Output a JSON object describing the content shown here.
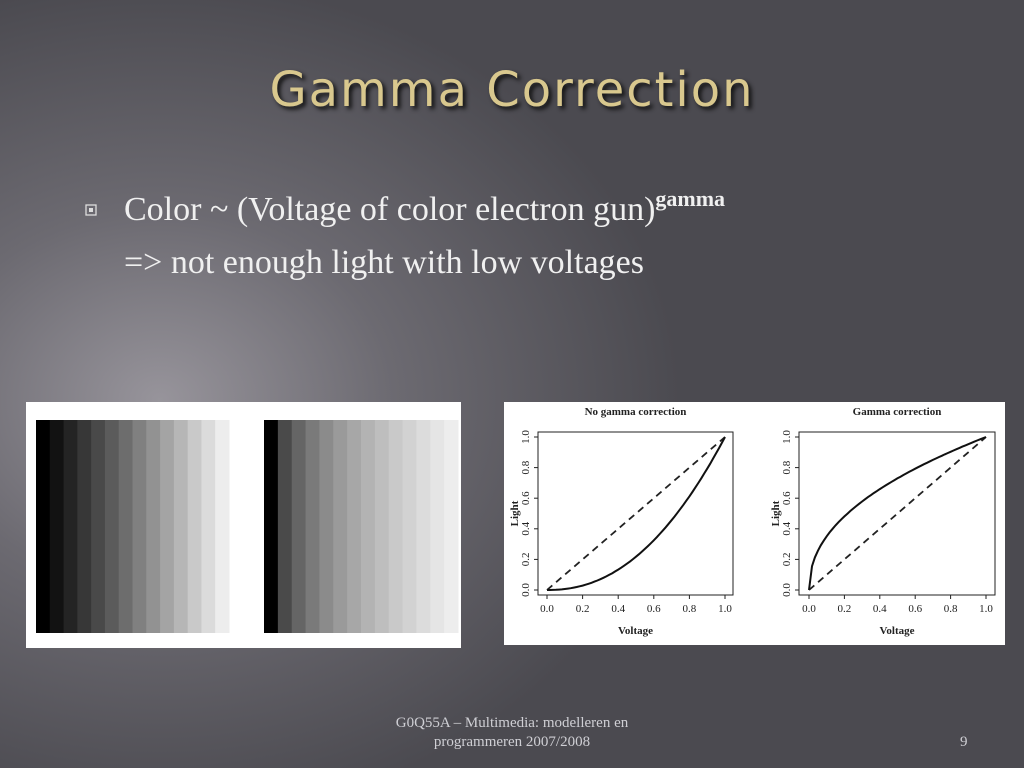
{
  "title": "Gamma Correction",
  "bullets": [
    {
      "text": "Color ~ (Voltage of color electron gun)",
      "superscript": "gamma"
    },
    {
      "text": "=> not enough light with low voltages"
    }
  ],
  "plots": [
    {
      "title": "No gamma correction",
      "xlabel": "Voltage",
      "ylabel": "Light",
      "xticks": [
        "0.0",
        "0.2",
        "0.4",
        "0.6",
        "0.8",
        "1.0"
      ],
      "yticks": [
        "0.0",
        "0.2",
        "0.4",
        "0.6",
        "0.8",
        "1.0"
      ]
    },
    {
      "title": "Gamma correction",
      "xlabel": "Voltage",
      "ylabel": "Light",
      "xticks": [
        "0.0",
        "0.2",
        "0.4",
        "0.6",
        "0.8",
        "1.0"
      ],
      "yticks": [
        "0.0",
        "0.2",
        "0.4",
        "0.6",
        "0.8",
        "1.0"
      ]
    }
  ],
  "footer": {
    "lines": [
      "G0Q55A – Multimedia: modelleren en",
      "programmeren 2007/2008"
    ],
    "page": "9"
  }
}
